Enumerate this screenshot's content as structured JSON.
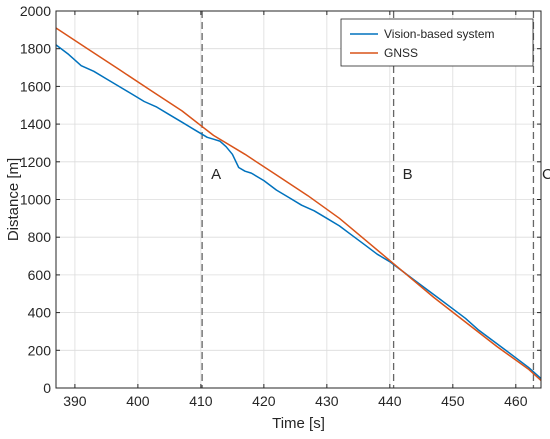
{
  "chart_data": {
    "type": "line",
    "xlabel": "Time [s]",
    "ylabel": "Distance [m]",
    "xlim": [
      387,
      464
    ],
    "ylim": [
      0,
      2000
    ],
    "xticks": [
      390,
      400,
      410,
      420,
      430,
      440,
      450,
      460
    ],
    "yticks": [
      0,
      200,
      400,
      600,
      800,
      1000,
      1200,
      1400,
      1600,
      1800,
      2000
    ],
    "grid": true,
    "legend_position": "top-right",
    "series": [
      {
        "name": "Vision-based system",
        "color": "#0072BD",
        "x": [
          387,
          389,
          391,
          393,
          395,
          397,
          399,
          401,
          403,
          405,
          407,
          409,
          411,
          412,
          413,
          414,
          415,
          416,
          417,
          418,
          420,
          422,
          424,
          426,
          428,
          430,
          432,
          434,
          436,
          438,
          440,
          442,
          444,
          446,
          448,
          450,
          452,
          454,
          456,
          458,
          460,
          462,
          464
        ],
        "y": [
          1820,
          1770,
          1710,
          1680,
          1640,
          1600,
          1560,
          1520,
          1490,
          1450,
          1410,
          1370,
          1330,
          1320,
          1310,
          1280,
          1240,
          1170,
          1150,
          1140,
          1100,
          1050,
          1010,
          970,
          940,
          900,
          860,
          810,
          760,
          710,
          670,
          620,
          570,
          520,
          470,
          420,
          370,
          310,
          260,
          210,
          160,
          110,
          50
        ]
      },
      {
        "name": "GNSS",
        "color": "#D95319",
        "x": [
          387,
          392,
          397,
          402,
          407,
          412,
          417,
          422,
          427,
          432,
          437,
          442,
          447,
          452,
          457,
          462,
          464
        ],
        "y": [
          1910,
          1800,
          1690,
          1580,
          1470,
          1340,
          1240,
          1130,
          1020,
          900,
          760,
          620,
          480,
          350,
          220,
          100,
          40
        ]
      }
    ],
    "markers": [
      {
        "label": "A",
        "x": 410.2
      },
      {
        "label": "B",
        "x": 440.6
      },
      {
        "label": "C",
        "x": 462.8
      }
    ],
    "marker_label_y": 1110
  }
}
